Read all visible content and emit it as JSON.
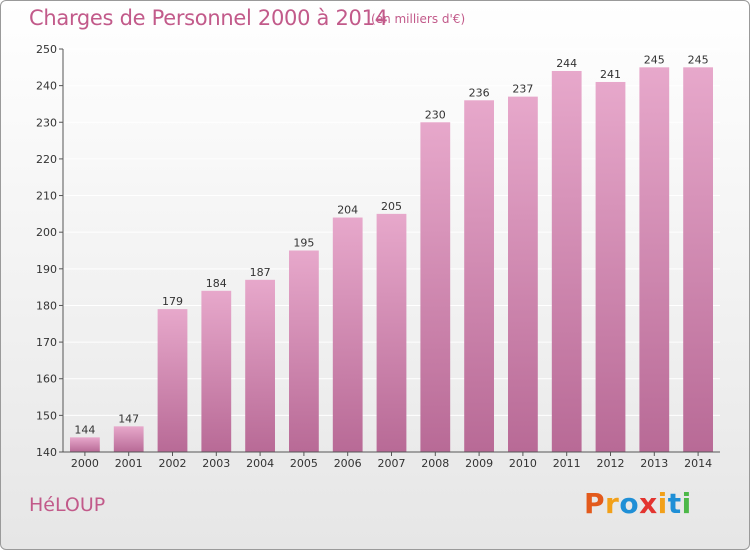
{
  "page": {
    "title": "Charges de Personnel 2000 à 2014",
    "subtitle": "(en milliers d'€)",
    "commune": "HéLOUP",
    "logo_text": "Proxiti"
  },
  "colors": {
    "title": "#c25a8a",
    "bar_top": "#e7a8cb",
    "bar_bottom": "#b86a96",
    "gridline": "#ffffff",
    "axis": "#555555",
    "logo": [
      "#e35a1c",
      "#f2a019",
      "#1f8fd6",
      "#e3342f",
      "#f2a019",
      "#1f8fd6",
      "#4cb848"
    ]
  },
  "chart_data": {
    "type": "bar",
    "title": "Charges de Personnel 2000 à 2014",
    "subtitle": "(en milliers d'€)",
    "xlabel": "",
    "ylabel": "",
    "categories": [
      "2000",
      "2001",
      "2002",
      "2003",
      "2004",
      "2005",
      "2006",
      "2007",
      "2008",
      "2009",
      "2010",
      "2011",
      "2012",
      "2013",
      "2014"
    ],
    "values": [
      144,
      147,
      179,
      184,
      187,
      195,
      204,
      205,
      230,
      236,
      237,
      244,
      241,
      245,
      245
    ],
    "ylim": [
      140,
      250
    ],
    "yticks": [
      140,
      150,
      160,
      170,
      180,
      190,
      200,
      210,
      220,
      230,
      240,
      250
    ],
    "grid": true,
    "legend": "none"
  }
}
